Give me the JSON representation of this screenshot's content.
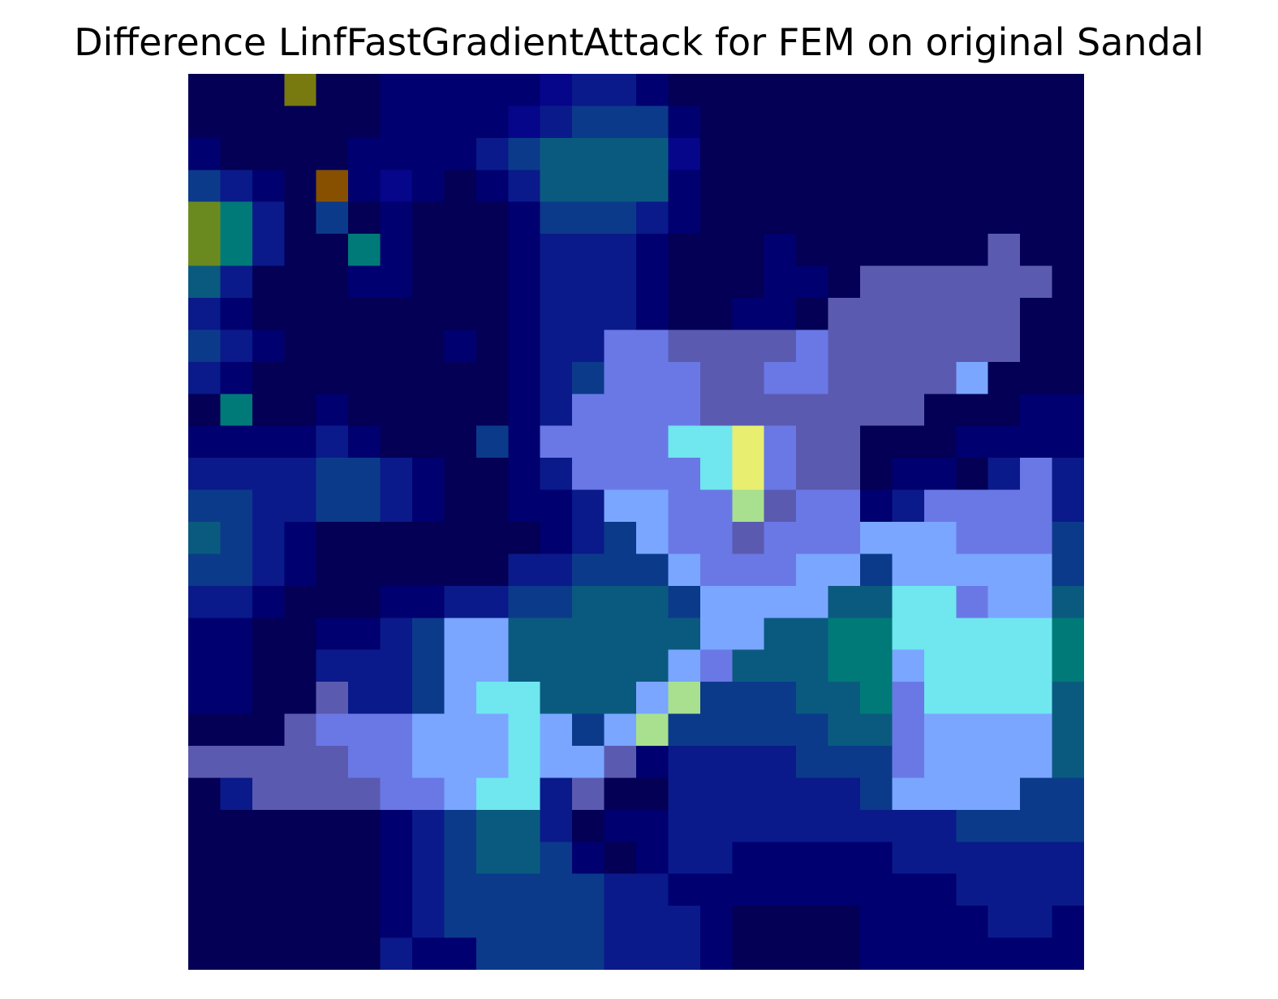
{
  "title": "Difference LinfFastGradientAttack for FEM on original Sandal",
  "image": {
    "kind": "difference heatmap overlay",
    "rows": 28,
    "cols": 28,
    "palette": {
      "N": "#030055",
      "D": "#000070",
      "P": "#06068a",
      "B": "#0a1a8a",
      "S": "#0c3a8a",
      "T": "#0a5a80",
      "G": "#007a78",
      "V": "#5a5ab0",
      "L": "#6a78e6",
      "K": "#7aa6ff",
      "C": "#70e6ef",
      "Y": "#e8ee70",
      "O": "#865000",
      "E": "#787a10",
      "F": "#6a8a20",
      "H": "#a8e090"
    },
    "pixels": [
      "NNNENNDDDDDPBBDNNNNNNNNNNNNN",
      "NNNNNNDDDDPBSSSDNNNNNNNNNNNN",
      "DNNNNDDDDBSTTTTPNNNNNNNNNNNN",
      "SBDNODPDNDBTTTTDNNNNNNNNNNNN",
      "FGBNSNDNNNDSSSBDNNNNNNNNNNNN",
      "FGBNNGDNNNDBBBDNNNDNNNNNNVNN",
      "TBNNNDDNNNDBBBDNNNDDNVVVVVVN",
      "BDNNNNNNNNDBBBDNNDDNVVVVVVNN",
      "SBDNNNNNDNDBBLLVVVVLVVVVVVNN",
      "BDNNNNNNNNDBSLLLVVLLVVVVKNNN",
      "NGNNDNNNNNDBLLLLVVVVVVVNNNDD",
      "DDDDBDNNNSDLLLLCCYLVVNNNDDDD",
      "BBBBSSBDNNDBLLLLCYLVVNDDNBLB",
      "SSBBSSBDNNDDBKKLLHVLLDBLLLLB",
      "TSBDNNNNNNNDBSKLLVLLLKKKLLLS",
      "SSBDNNNNNNBBSSSKLLLKKSKKKKKS",
      "BBDNNNDDBBSSTTTSKKKKTTCCLKKT",
      "DDNNDDBSKKTTTTTTKKTTGGCCCCCG",
      "DDNNBBBSKKTTTTTKLTTTGGKCCCCG",
      "DDNNVBBSKCCTTTKHSSSTTGLCCCCT",
      "NNNVLLLKKKCKSKHSSSSSTTLKKKKT",
      "VVVVVLLKKKCKKVDBBBBSSSLKKKKT",
      "NBVVVVLLKCCBVNNBBBBBBSKKKKSS",
      "NNNNNNDBSTTBNDDBBBBBBBBBSSSS",
      "NNNNNNDBSTTSDNDBBDDDDDBBBBBB",
      "NNNNNNDBSSSSSBBDDDDDDDDDBBBB",
      "NNNNNNDBSSSSSBBBDNNNNDDDDBBD",
      "NNNNNNBDDSSSSBBBDNNNNDDDDDDD"
    ]
  }
}
